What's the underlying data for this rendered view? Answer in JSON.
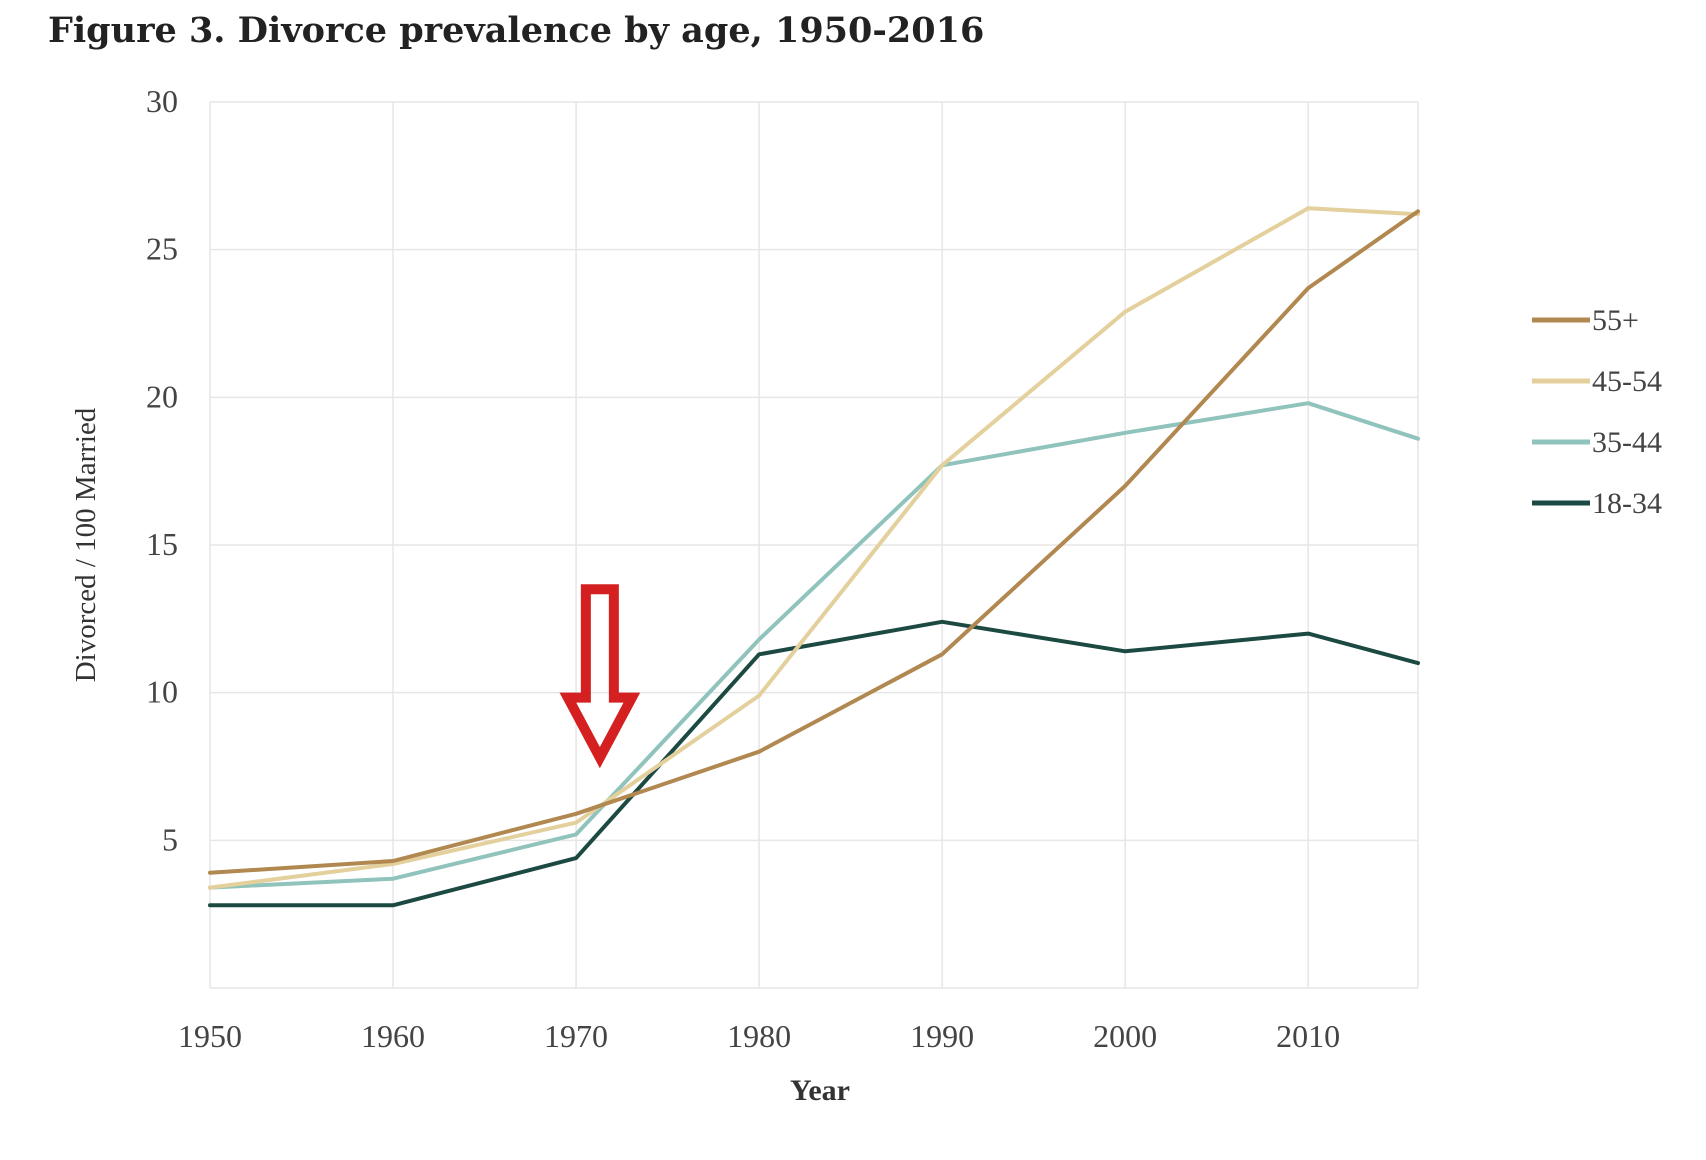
{
  "chart_data": {
    "type": "line",
    "title": "Figure 3. Divorce prevalence by age, 1950-2016",
    "xlabel": "Year",
    "ylabel": "Divorced / 100 Married",
    "xlim": [
      1950,
      2016
    ],
    "ylim": [
      0,
      30
    ],
    "x_ticks": [
      "1950",
      "1960",
      "1970",
      "1980",
      "1990",
      "2000",
      "2010"
    ],
    "y_ticks": [
      "5",
      "10",
      "15",
      "20",
      "25",
      "30"
    ],
    "grid": true,
    "legend_position": "right",
    "x": [
      1950,
      1960,
      1970,
      1980,
      1990,
      2000,
      2010,
      2016
    ],
    "series": [
      {
        "name": "55+",
        "color": "#b08850",
        "values": [
          3.9,
          4.3,
          5.9,
          8.0,
          11.3,
          17.0,
          23.7,
          26.3
        ]
      },
      {
        "name": "45-54",
        "color": "#e3d09c",
        "values": [
          3.4,
          4.2,
          5.6,
          9.9,
          17.7,
          22.9,
          26.4,
          26.2
        ]
      },
      {
        "name": "35-44",
        "color": "#8fc3bc",
        "values": [
          3.4,
          3.7,
          5.2,
          11.8,
          17.7,
          18.8,
          19.8,
          18.6
        ]
      },
      {
        "name": "18-34",
        "color": "#1c4a42",
        "values": [
          2.8,
          2.8,
          4.4,
          11.3,
          12.4,
          11.4,
          12.0,
          11.0
        ]
      }
    ],
    "annotation": {
      "type": "arrow-down",
      "color": "#d42020",
      "x": 1971.3,
      "y_top": 13.5,
      "y_bottom": 7.8
    }
  }
}
